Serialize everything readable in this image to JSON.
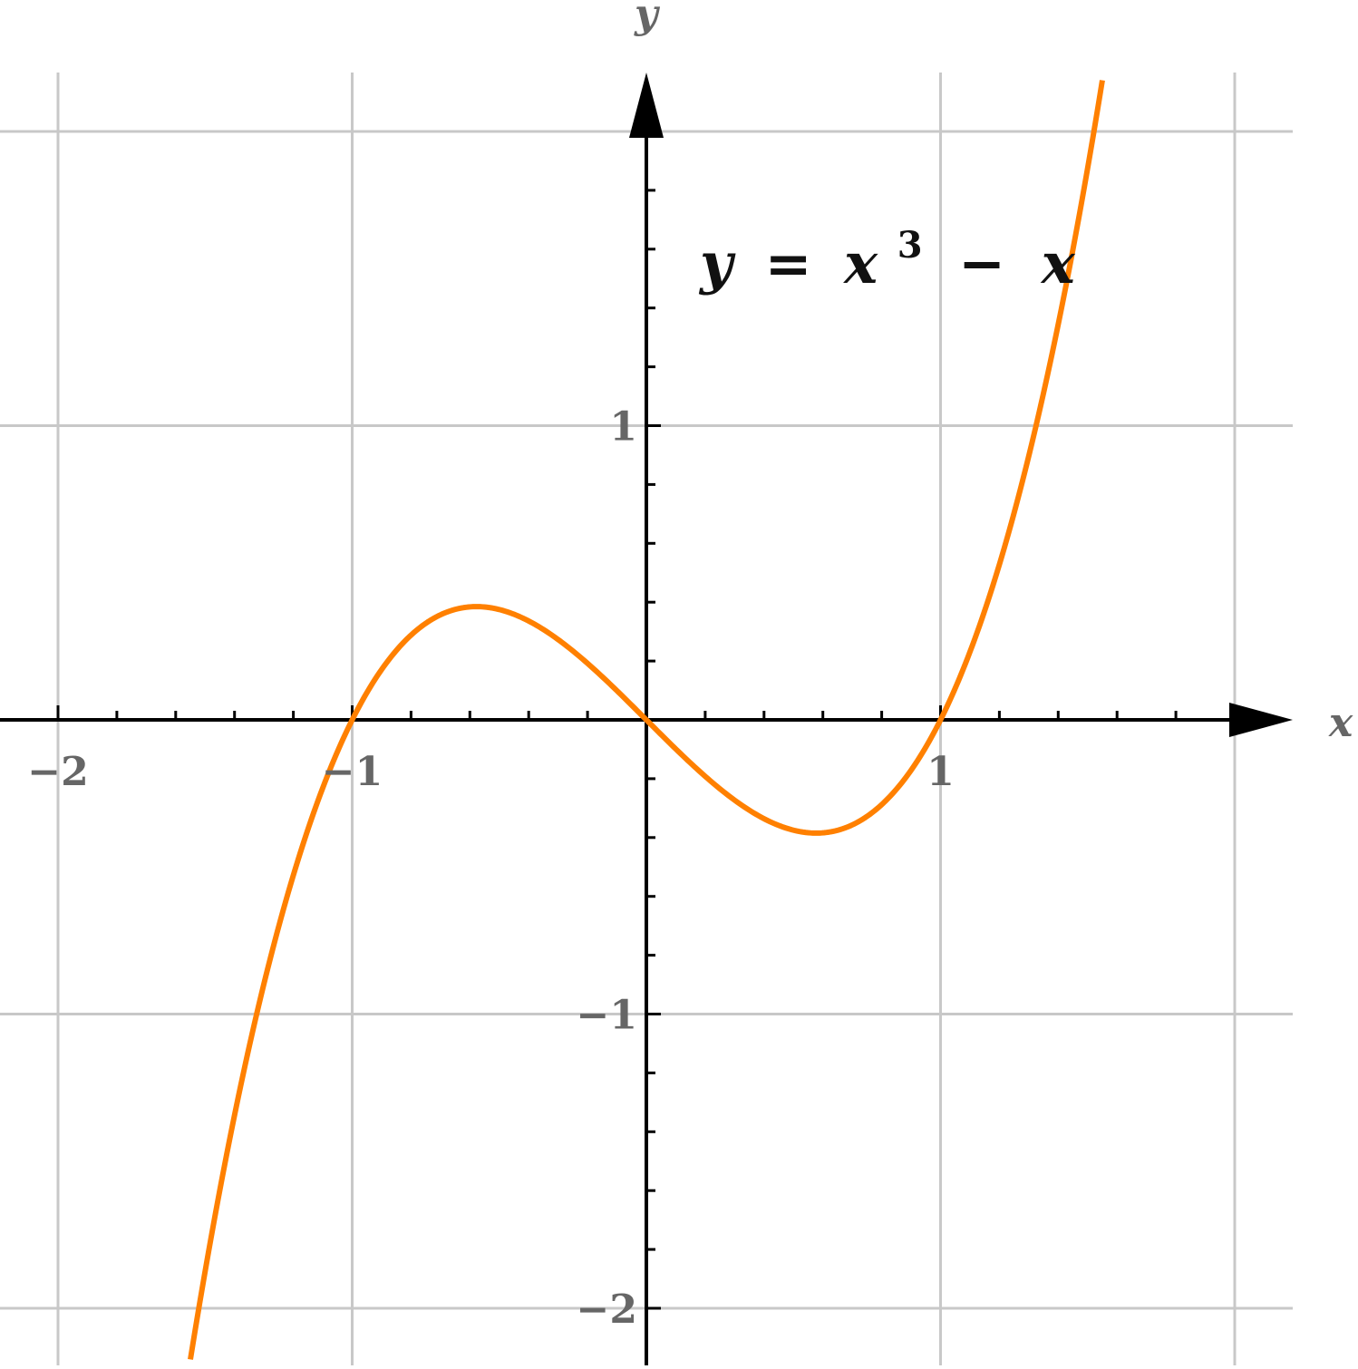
{
  "chart_data": {
    "type": "line",
    "title": "",
    "annotation": {
      "lhs": "y",
      "eq": "=",
      "x": "x",
      "exp": "3",
      "minus": "−",
      "x2": "x"
    },
    "xlabel": "x",
    "ylabel": "y",
    "xlim": [
      -2.2,
      2.2
    ],
    "ylim": [
      -2.2,
      2.2
    ],
    "grid": true,
    "x_ticks": [
      {
        "value": -2,
        "label": "−2"
      },
      {
        "value": -1,
        "label": "−1"
      },
      {
        "value": 1,
        "label": "1"
      }
    ],
    "y_ticks": [
      {
        "value": 1,
        "label": "1"
      },
      {
        "value": -1,
        "label": "−1"
      },
      {
        "value": -2,
        "label": "−2"
      }
    ],
    "series": [
      {
        "function": "x^3 - x",
        "color": "#ff8000",
        "x": [
          -1.55,
          -1.5,
          -1.4,
          -1.3,
          -1.2,
          -1.1,
          -1.0,
          -0.9,
          -0.8,
          -0.7,
          -0.6,
          -0.5,
          -0.4,
          -0.3,
          -0.2,
          -0.1,
          0.0,
          0.1,
          0.2,
          0.3,
          0.4,
          0.5,
          0.6,
          0.7,
          0.8,
          0.9,
          1.0,
          1.1,
          1.2,
          1.3,
          1.4,
          1.5
        ],
        "y": [
          -2.174,
          -1.875,
          -1.344,
          -0.897,
          -0.528,
          -0.231,
          0.0,
          0.171,
          0.288,
          0.357,
          0.384,
          0.375,
          0.336,
          0.273,
          0.192,
          0.099,
          0.0,
          -0.099,
          -0.192,
          -0.273,
          -0.336,
          -0.375,
          -0.384,
          -0.357,
          -0.288,
          -0.171,
          0.0,
          0.231,
          0.528,
          0.897,
          1.344,
          1.875
        ]
      }
    ],
    "colors": {
      "grid": "#c8c8c8",
      "axis": "#000000",
      "curve": "#ff8000",
      "tick_label": "#666666"
    }
  }
}
